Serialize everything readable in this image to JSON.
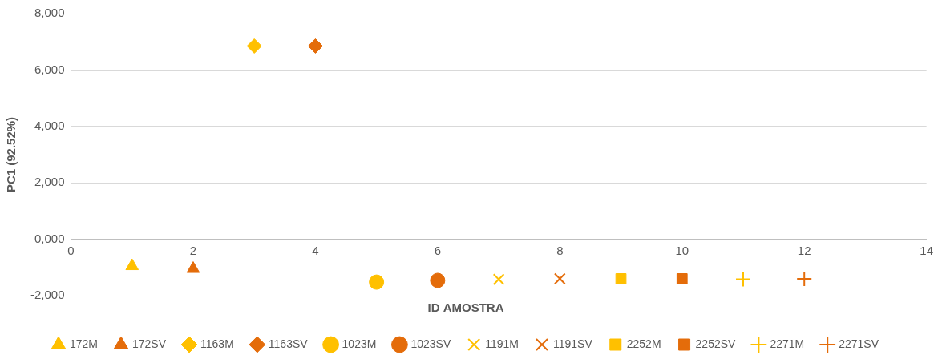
{
  "chart_data": {
    "type": "scatter",
    "x_label": "ID AMOSTRA",
    "y_label": "PC1 (92.52%)",
    "xlim": [
      0,
      14
    ],
    "xticks": [
      0,
      2,
      4,
      6,
      8,
      10,
      12,
      14
    ],
    "ylim": [
      -2,
      8
    ],
    "yticks": [
      {
        "value": -2,
        "label": "-2,000"
      },
      {
        "value": 0,
        "label": "0,000"
      },
      {
        "value": 2,
        "label": "2,000"
      },
      {
        "value": 4,
        "label": "4,000"
      },
      {
        "value": 6,
        "label": "6,000"
      },
      {
        "value": 8,
        "label": "8,000"
      }
    ],
    "grid": true,
    "legend": "bottom",
    "series": [
      {
        "name": "172M",
        "color": "#ffc000",
        "marker": "triangle",
        "x": [
          1
        ],
        "values": [
          -0.95
        ]
      },
      {
        "name": "172SV",
        "color": "#e46c0a",
        "marker": "triangle",
        "x": [
          2
        ],
        "values": [
          -1.05
        ]
      },
      {
        "name": "1163M",
        "color": "#ffc000",
        "marker": "diamond",
        "x": [
          3
        ],
        "values": [
          6.85
        ]
      },
      {
        "name": "1163SV",
        "color": "#e46c0a",
        "marker": "diamond",
        "x": [
          4
        ],
        "values": [
          6.85
        ]
      },
      {
        "name": "1023M",
        "color": "#ffc000",
        "marker": "circle",
        "x": [
          5
        ],
        "values": [
          -1.52
        ]
      },
      {
        "name": "1023SV",
        "color": "#e46c0a",
        "marker": "circle",
        "x": [
          6
        ],
        "values": [
          -1.46
        ]
      },
      {
        "name": "1191M",
        "color": "#ffc000",
        "marker": "x",
        "x": [
          7
        ],
        "values": [
          -1.42
        ]
      },
      {
        "name": "1191SV",
        "color": "#e46c0a",
        "marker": "x",
        "x": [
          8
        ],
        "values": [
          -1.4
        ]
      },
      {
        "name": "2252M",
        "color": "#ffc000",
        "marker": "square",
        "x": [
          9
        ],
        "values": [
          -1.4
        ]
      },
      {
        "name": "2252SV",
        "color": "#e46c0a",
        "marker": "square",
        "x": [
          10
        ],
        "values": [
          -1.4
        ]
      },
      {
        "name": "2271M",
        "color": "#ffc000",
        "marker": "plus",
        "x": [
          11
        ],
        "values": [
          -1.42
        ]
      },
      {
        "name": "2271SV",
        "color": "#e46c0a",
        "marker": "plus",
        "x": [
          12
        ],
        "values": [
          -1.4
        ]
      }
    ]
  }
}
